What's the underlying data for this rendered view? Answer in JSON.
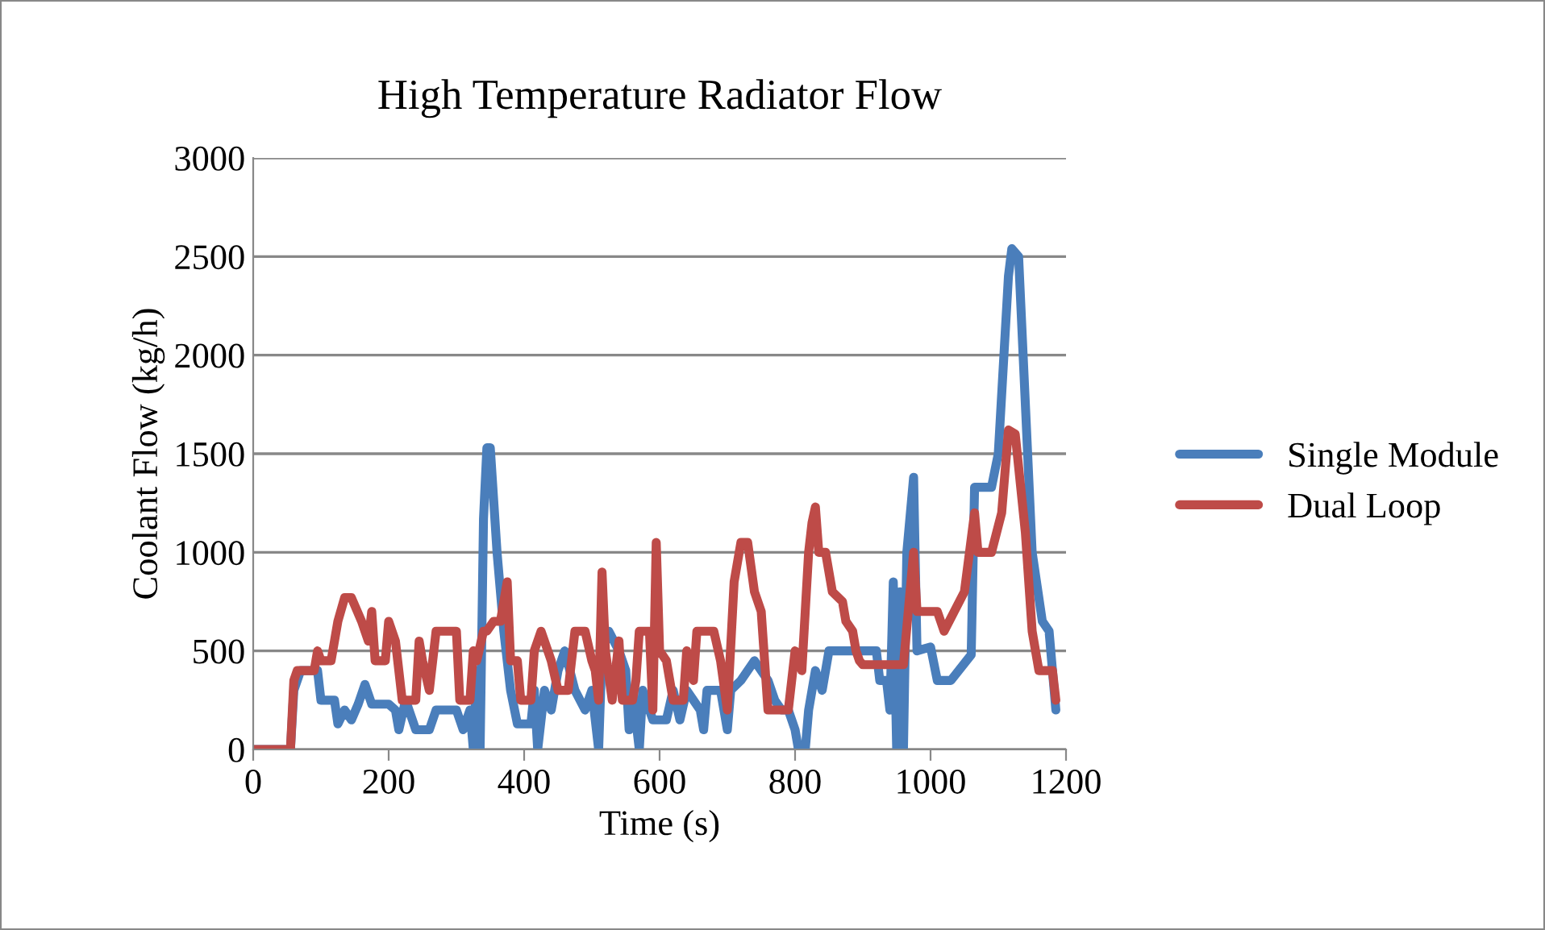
{
  "chart_data": {
    "type": "line",
    "title": "High Temperature Radiator Flow",
    "xlabel": "Time (s)",
    "ylabel": "Coolant Flow (kg/h)",
    "xlim": [
      0,
      1200
    ],
    "xticks": [
      0,
      200,
      400,
      600,
      800,
      1000,
      1200
    ],
    "ylim": [
      0,
      3000
    ],
    "yticks": [
      0,
      500,
      1000,
      1500,
      2000,
      2500,
      3000
    ],
    "grid": "y",
    "legend": "right",
    "marker": "none",
    "line_style": "solid",
    "series": [
      {
        "name": "Single Module",
        "color": "#4a7ebb",
        "x": [
          0,
          55,
          60,
          70,
          95,
          100,
          120,
          125,
          135,
          145,
          155,
          165,
          175,
          200,
          210,
          215,
          225,
          240,
          260,
          270,
          300,
          310,
          320,
          325,
          330,
          335,
          340,
          345,
          350,
          360,
          370,
          380,
          390,
          410,
          415,
          420,
          430,
          440,
          450,
          460,
          475,
          490,
          500,
          510,
          515,
          525,
          540,
          550,
          555,
          560,
          570,
          575,
          590,
          610,
          620,
          630,
          640,
          660,
          665,
          670,
          690,
          700,
          705,
          720,
          740,
          750,
          760,
          770,
          780,
          790,
          800,
          805,
          815,
          820,
          830,
          840,
          850,
          860,
          920,
          925,
          935,
          940,
          945,
          950,
          955,
          960,
          965,
          975,
          980,
          1000,
          1010,
          1030,
          1060,
          1065,
          1090,
          1100,
          1115,
          1120,
          1130,
          1150,
          1165,
          1175,
          1185
        ],
        "values": [
          0,
          0,
          300,
          400,
          400,
          250,
          250,
          130,
          200,
          150,
          230,
          330,
          230,
          230,
          200,
          100,
          250,
          100,
          100,
          200,
          200,
          100,
          200,
          0,
          400,
          0,
          1170,
          1530,
          1530,
          1000,
          600,
          300,
          130,
          130,
          300,
          0,
          300,
          200,
          400,
          500,
          300,
          200,
          300,
          0,
          500,
          600,
          500,
          400,
          100,
          300,
          0,
          300,
          150,
          150,
          300,
          150,
          300,
          200,
          100,
          300,
          300,
          100,
          300,
          350,
          450,
          400,
          350,
          250,
          200,
          200,
          100,
          0,
          0,
          200,
          400,
          300,
          500,
          500,
          500,
          350,
          350,
          200,
          850,
          0,
          800,
          0,
          1000,
          1380,
          500,
          520,
          350,
          350,
          480,
          1330,
          1330,
          1500,
          2400,
          2540,
          2500,
          1000,
          650,
          600,
          200
        ]
      },
      {
        "name": "Dual Loop",
        "color": "#be4b48",
        "x": [
          0,
          55,
          60,
          65,
          90,
          95,
          100,
          115,
          125,
          135,
          145,
          160,
          170,
          175,
          180,
          195,
          200,
          210,
          220,
          240,
          245,
          250,
          260,
          270,
          300,
          305,
          320,
          325,
          330,
          340,
          345,
          355,
          365,
          375,
          380,
          390,
          395,
          410,
          415,
          425,
          440,
          450,
          465,
          475,
          490,
          500,
          505,
          510,
          515,
          520,
          530,
          540,
          545,
          560,
          565,
          570,
          585,
          590,
          595,
          600,
          610,
          620,
          635,
          640,
          650,
          655,
          680,
          690,
          700,
          710,
          720,
          730,
          740,
          750,
          760,
          790,
          800,
          810,
          820,
          825,
          830,
          835,
          845,
          855,
          870,
          875,
          885,
          890,
          895,
          900,
          960,
          975,
          980,
          1010,
          1020,
          1050,
          1065,
          1070,
          1090,
          1105,
          1115,
          1125,
          1140,
          1150,
          1160,
          1180,
          1185
        ],
        "values": [
          0,
          0,
          350,
          400,
          400,
          500,
          450,
          450,
          650,
          770,
          770,
          650,
          550,
          700,
          450,
          450,
          650,
          550,
          250,
          250,
          550,
          450,
          300,
          600,
          600,
          250,
          250,
          500,
          450,
          600,
          600,
          650,
          650,
          850,
          450,
          450,
          250,
          250,
          500,
          600,
          450,
          300,
          300,
          600,
          600,
          450,
          400,
          250,
          900,
          500,
          250,
          550,
          250,
          250,
          350,
          600,
          600,
          200,
          1050,
          500,
          450,
          250,
          250,
          500,
          350,
          600,
          600,
          450,
          200,
          850,
          1050,
          1050,
          800,
          700,
          200,
          200,
          500,
          400,
          1000,
          1150,
          1230,
          1000,
          1000,
          800,
          750,
          650,
          600,
          500,
          450,
          430,
          430,
          1000,
          700,
          700,
          600,
          800,
          1200,
          1000,
          1000,
          1200,
          1620,
          1600,
          1100,
          600,
          400,
          400,
          250
        ]
      }
    ]
  }
}
